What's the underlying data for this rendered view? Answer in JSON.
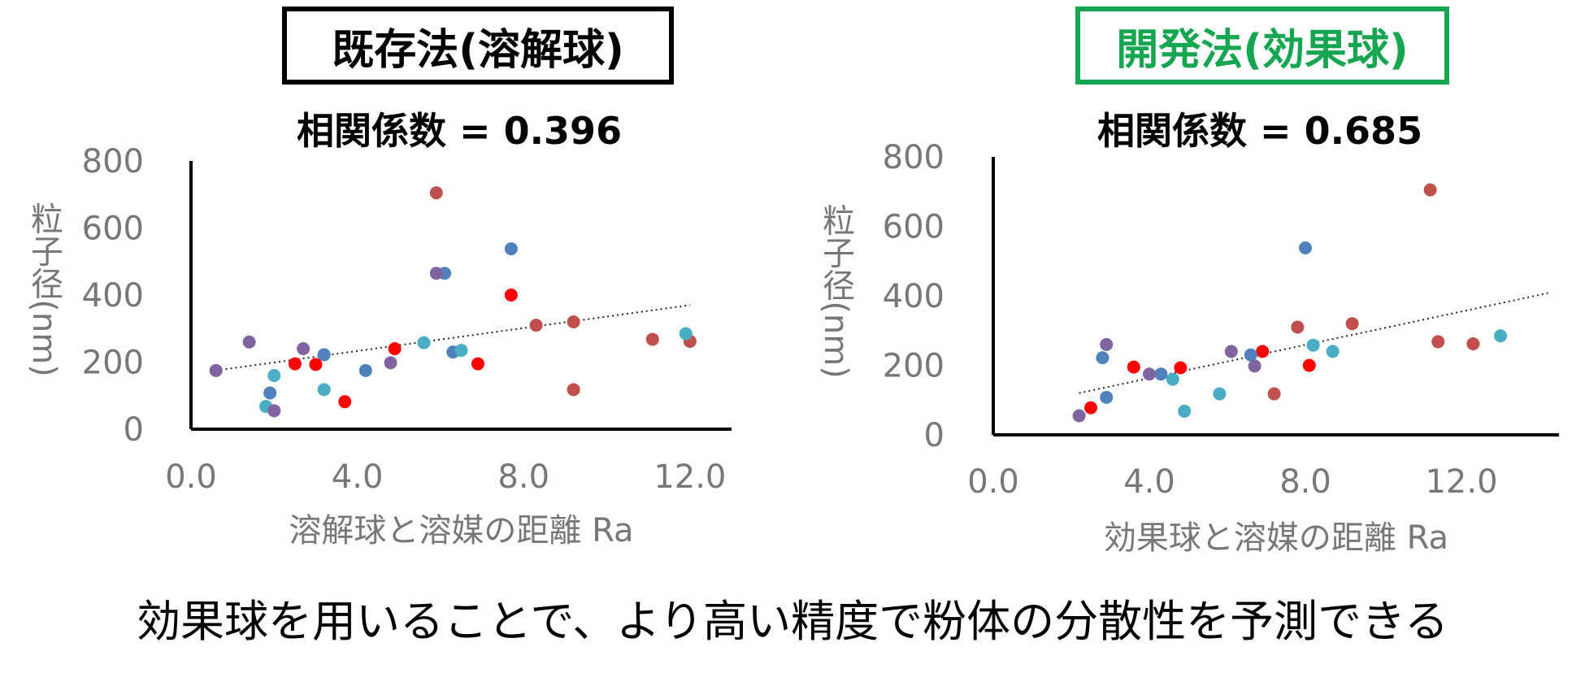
{
  "footer_text": "効果球を用いることで、より高い精度で粉体の分散性を予測できる",
  "colors": {
    "method_existing": "#000000",
    "method_new": "#16a550",
    "axis": "#000000",
    "tick_text": "#777777",
    "trend": "#222222"
  },
  "panels": [
    {
      "method_label": "既存法(溶解球)",
      "corr_label": "相関係数 = 0.396"
    },
    {
      "method_label": "開発法(効果球)",
      "corr_label": "相関係数 = 0.685"
    }
  ],
  "chart_data": [
    {
      "type": "scatter",
      "title": "相関係数 = 0.396",
      "xlabel": "溶解球と溶媒の距離 Ra",
      "ylabel": "粒子径(nm)",
      "xlim": [
        0.0,
        13.0
      ],
      "ylim": [
        0,
        800
      ],
      "xticks": [
        "0.0",
        "4.0",
        "8.0",
        "12.0"
      ],
      "yticks": [
        "0",
        "200",
        "400",
        "600",
        "800"
      ],
      "grid": false,
      "trendline": {
        "style": "dotted",
        "x": [
          0.6,
          12.0
        ],
        "y": [
          175,
          370
        ]
      },
      "series": [
        {
          "color": "#c0504d",
          "points": [
            [
              5.9,
              705
            ],
            [
              8.3,
              310
            ],
            [
              9.2,
              320
            ],
            [
              9.2,
              118
            ],
            [
              11.1,
              268
            ],
            [
              12.0,
              262
            ]
          ]
        },
        {
          "color": "#ff0000",
          "points": [
            [
              2.5,
              195
            ],
            [
              3.0,
              193
            ],
            [
              3.7,
              82
            ],
            [
              4.9,
              240
            ],
            [
              6.9,
              195
            ],
            [
              7.7,
              400
            ]
          ]
        },
        {
          "color": "#4f81bd",
          "points": [
            [
              1.9,
              108
            ],
            [
              3.2,
              222
            ],
            [
              4.2,
              175
            ],
            [
              6.1,
              465
            ],
            [
              6.3,
              230
            ],
            [
              7.7,
              538
            ]
          ]
        },
        {
          "color": "#4bacc6",
          "points": [
            [
              1.8,
              68
            ],
            [
              2.0,
              160
            ],
            [
              3.2,
              118
            ],
            [
              5.6,
              258
            ],
            [
              6.5,
              235
            ],
            [
              11.9,
              285
            ]
          ]
        },
        {
          "color": "#8064a2",
          "points": [
            [
              0.6,
              175
            ],
            [
              1.4,
              260
            ],
            [
              2.0,
              55
            ],
            [
              2.7,
              240
            ],
            [
              4.8,
              198
            ],
            [
              5.9,
              465
            ]
          ]
        }
      ]
    },
    {
      "type": "scatter",
      "title": "相関係数 = 0.685",
      "xlabel": "効果球と溶媒の距離 Ra",
      "ylabel": "粒子径(nm)",
      "xlim": [
        0.0,
        14.5
      ],
      "ylim": [
        0,
        800
      ],
      "xticks": [
        "0.0",
        "4.0",
        "8.0",
        "12.0"
      ],
      "yticks": [
        "0",
        "200",
        "400",
        "600",
        "800"
      ],
      "grid": false,
      "trendline": {
        "style": "dotted",
        "x": [
          2.2,
          14.3
        ],
        "y": [
          120,
          410
        ]
      },
      "series": [
        {
          "color": "#c0504d",
          "points": [
            [
              7.2,
              118
            ],
            [
              7.8,
              310
            ],
            [
              9.2,
              320
            ],
            [
              11.2,
              705
            ],
            [
              11.4,
              268
            ],
            [
              12.3,
              262
            ]
          ]
        },
        {
          "color": "#ff0000",
          "points": [
            [
              2.5,
              78
            ],
            [
              3.6,
              195
            ],
            [
              4.8,
              193
            ],
            [
              6.9,
              240
            ],
            [
              8.1,
              200
            ]
          ]
        },
        {
          "color": "#4f81bd",
          "points": [
            [
              2.8,
              222
            ],
            [
              2.9,
              108
            ],
            [
              4.3,
              175
            ],
            [
              6.6,
              230
            ],
            [
              8.0,
              538
            ]
          ]
        },
        {
          "color": "#4bacc6",
          "points": [
            [
              4.6,
              160
            ],
            [
              4.9,
              68
            ],
            [
              5.8,
              118
            ],
            [
              8.2,
              258
            ],
            [
              8.7,
              240
            ],
            [
              13.0,
              285
            ]
          ]
        },
        {
          "color": "#8064a2",
          "points": [
            [
              2.2,
              55
            ],
            [
              2.9,
              260
            ],
            [
              4.0,
              175
            ],
            [
              6.1,
              240
            ],
            [
              6.7,
              198
            ]
          ]
        }
      ]
    }
  ]
}
